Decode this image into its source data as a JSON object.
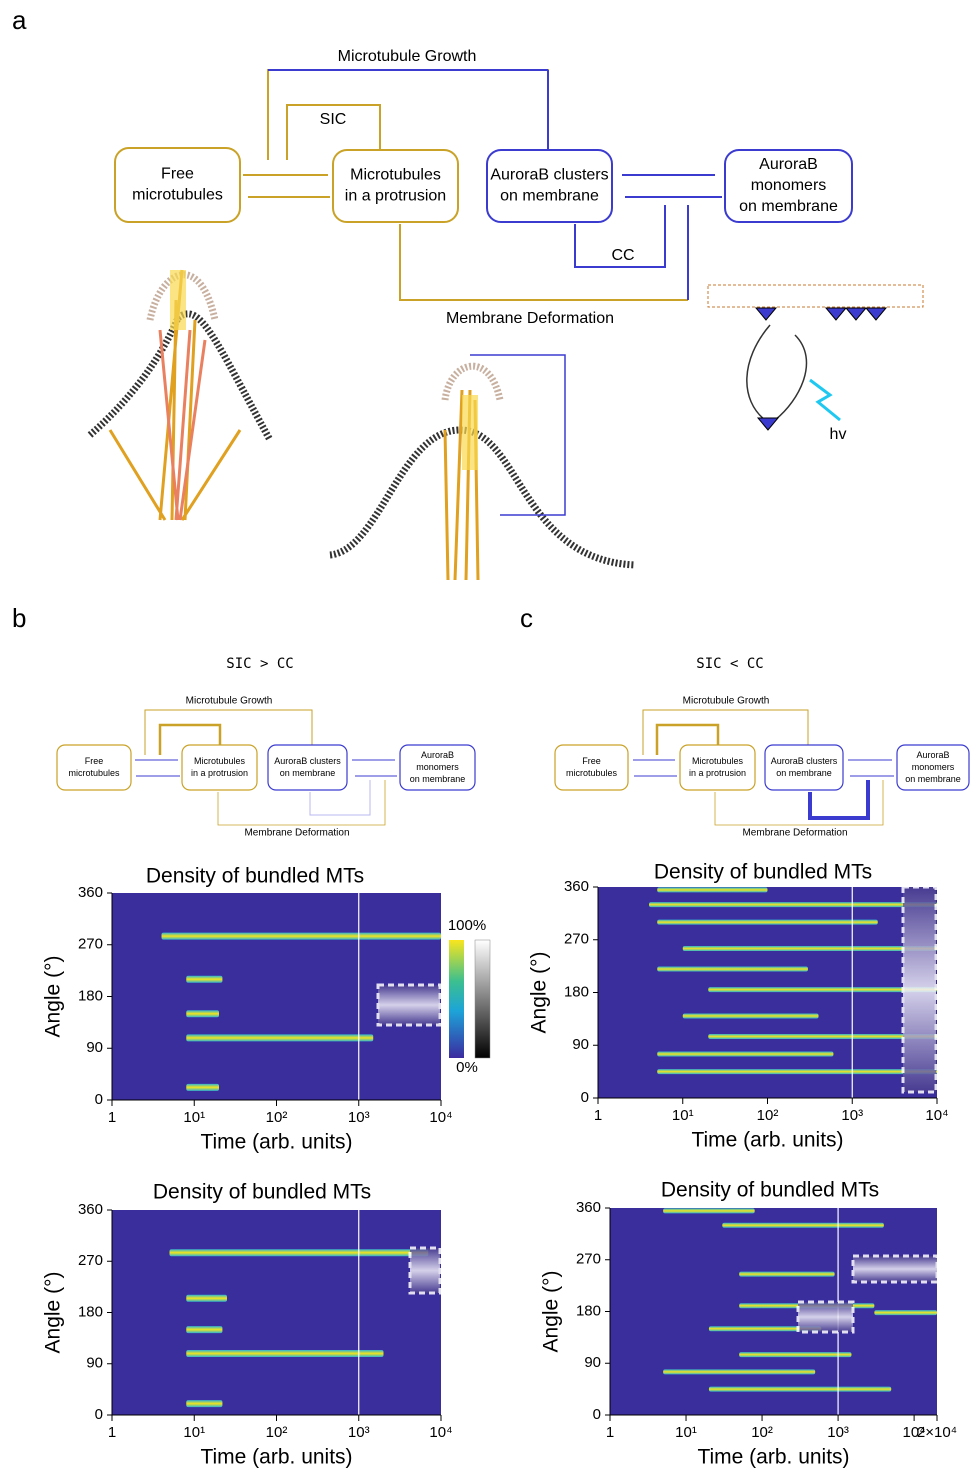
{
  "figure": {
    "panel_a": "a",
    "panel_b": "b",
    "panel_c": "c"
  },
  "diagram_a": {
    "growth": "Microtubule Growth",
    "sic": "SIC",
    "cc": "CC",
    "deformation": "Membrane Deformation",
    "hv": "hv",
    "boxes": [
      [
        "Free",
        "microtubules"
      ],
      [
        "Microtubules",
        "in a protrusion"
      ],
      [
        "AuroraB clusters",
        "on membrane"
      ],
      [
        "AuroraB",
        "monomers",
        "on membrane"
      ]
    ]
  },
  "diagram_b": {
    "condition": "SIC > CC",
    "growth": "Microtubule Growth",
    "deformation": "Membrane Deformation",
    "boxes": [
      [
        "Free",
        "microtubules"
      ],
      [
        "Microtubules",
        "in a protrusion"
      ],
      [
        "AuroraB clusters",
        "on membrane"
      ],
      [
        "AuroraB",
        "monomers",
        "on membrane"
      ]
    ]
  },
  "diagram_c": {
    "condition": "SIC < CC",
    "growth": "Microtubule Growth",
    "deformation": "Membrane Deformation",
    "boxes": [
      [
        "Free",
        "microtubules"
      ],
      [
        "Microtubules",
        "in a protrusion"
      ],
      [
        "AuroraB clusters",
        "on membrane"
      ],
      [
        "AuroraB",
        "monomers",
        "on membrane"
      ]
    ]
  },
  "chart_data": [
    {
      "type": "heatmap",
      "title": "Density of bundled MTs",
      "x_label": "Time (arb. units)",
      "y_label": "Angle (°)",
      "log_x": true,
      "xlim": [
        1,
        10000
      ],
      "xticks": [
        1,
        {
          "value": 10,
          "label": "10¹"
        },
        {
          "value": 100,
          "label": "10²"
        },
        {
          "value": 1000,
          "label": "10³"
        },
        {
          "value": 10000,
          "label": "10⁴"
        }
      ],
      "ylim": [
        0,
        360
      ],
      "yticks": [
        0,
        90,
        180,
        270,
        360
      ],
      "vline": 1000,
      "colorbar": {
        "max_label": "100%",
        "min_label": "0%"
      },
      "streaks": [
        {
          "angle": 285,
          "start": 4,
          "end": 10000
        },
        {
          "angle": 108,
          "start": 8,
          "end": 1500
        },
        {
          "angle": 210,
          "start": 8,
          "end": 22
        },
        {
          "angle": 150,
          "start": 8,
          "end": 20
        },
        {
          "angle": 22,
          "start": 8,
          "end": 20
        }
      ]
    },
    {
      "type": "heatmap",
      "title": "Density of bundled MTs",
      "x_label": "Time (arb. units)",
      "y_label": "Angle (°)",
      "log_x": true,
      "xlim": [
        1,
        10000
      ],
      "xticks": [
        1,
        {
          "value": 10,
          "label": "10¹"
        },
        {
          "value": 100,
          "label": "10²"
        },
        {
          "value": 1000,
          "label": "10³"
        },
        {
          "value": 10000,
          "label": "10⁴"
        }
      ],
      "ylim": [
        0,
        360
      ],
      "yticks": [
        0,
        90,
        180,
        270,
        360
      ],
      "vline": 1000,
      "streaks": [
        {
          "angle": 285,
          "start": 5,
          "end": 7000
        },
        {
          "angle": 108,
          "start": 8,
          "end": 2000
        },
        {
          "angle": 205,
          "start": 8,
          "end": 25
        },
        {
          "angle": 150,
          "start": 8,
          "end": 22
        },
        {
          "angle": 20,
          "start": 8,
          "end": 22
        }
      ]
    },
    {
      "type": "heatmap",
      "title": "Density of bundled MTs",
      "x_label": "Time (arb. units)",
      "y_label": "Angle (°)",
      "log_x": true,
      "xlim": [
        1,
        10000
      ],
      "xticks": [
        1,
        {
          "value": 10,
          "label": "10¹"
        },
        {
          "value": 100,
          "label": "10²"
        },
        {
          "value": 1000,
          "label": "10³"
        },
        {
          "value": 10000,
          "label": "10⁴"
        }
      ],
      "ylim": [
        0,
        360
      ],
      "yticks": [
        0,
        90,
        180,
        270,
        360
      ],
      "vline": 1000,
      "streaks": [
        {
          "angle": 330,
          "start": 4,
          "end": 10000
        },
        {
          "angle": 185,
          "start": 20,
          "end": 10000
        },
        {
          "angle": 45,
          "start": 5,
          "end": 10000
        },
        {
          "angle": 255,
          "start": 10,
          "end": 10000
        },
        {
          "angle": 105,
          "start": 20,
          "end": 10000
        },
        {
          "angle": 300,
          "start": 5,
          "end": 2000
        },
        {
          "angle": 140,
          "start": 10,
          "end": 400
        },
        {
          "angle": 220,
          "start": 5,
          "end": 300
        },
        {
          "angle": 75,
          "start": 5,
          "end": 600
        },
        {
          "angle": 355,
          "start": 5,
          "end": 100
        }
      ]
    },
    {
      "type": "heatmap",
      "title": "Density of bundled MTs",
      "x_label": "Time (arb. units)",
      "y_label": "Angle (°)",
      "log_x": true,
      "xlim": [
        1,
        20000
      ],
      "xticks": [
        1,
        {
          "value": 10,
          "label": "10¹"
        },
        {
          "value": 100,
          "label": "10²"
        },
        {
          "value": 1000,
          "label": "10³"
        },
        {
          "value": 10000,
          "label": "10⁴"
        },
        {
          "value": 20000,
          "label": "2×10⁴"
        }
      ],
      "ylim": [
        0,
        360
      ],
      "yticks": [
        0,
        90,
        180,
        270,
        360
      ],
      "vline": 1000,
      "streaks": [
        {
          "angle": 330,
          "start": 30,
          "end": 4000
        },
        {
          "angle": 178,
          "start": 3000,
          "end": 20000
        },
        {
          "angle": 190,
          "start": 50,
          "end": 3000
        },
        {
          "angle": 45,
          "start": 20,
          "end": 5000
        },
        {
          "angle": 245,
          "start": 50,
          "end": 900
        },
        {
          "angle": 105,
          "start": 50,
          "end": 1500
        },
        {
          "angle": 150,
          "start": 20,
          "end": 600
        },
        {
          "angle": 355,
          "start": 5,
          "end": 80
        },
        {
          "angle": 75,
          "start": 5,
          "end": 500
        }
      ]
    }
  ]
}
